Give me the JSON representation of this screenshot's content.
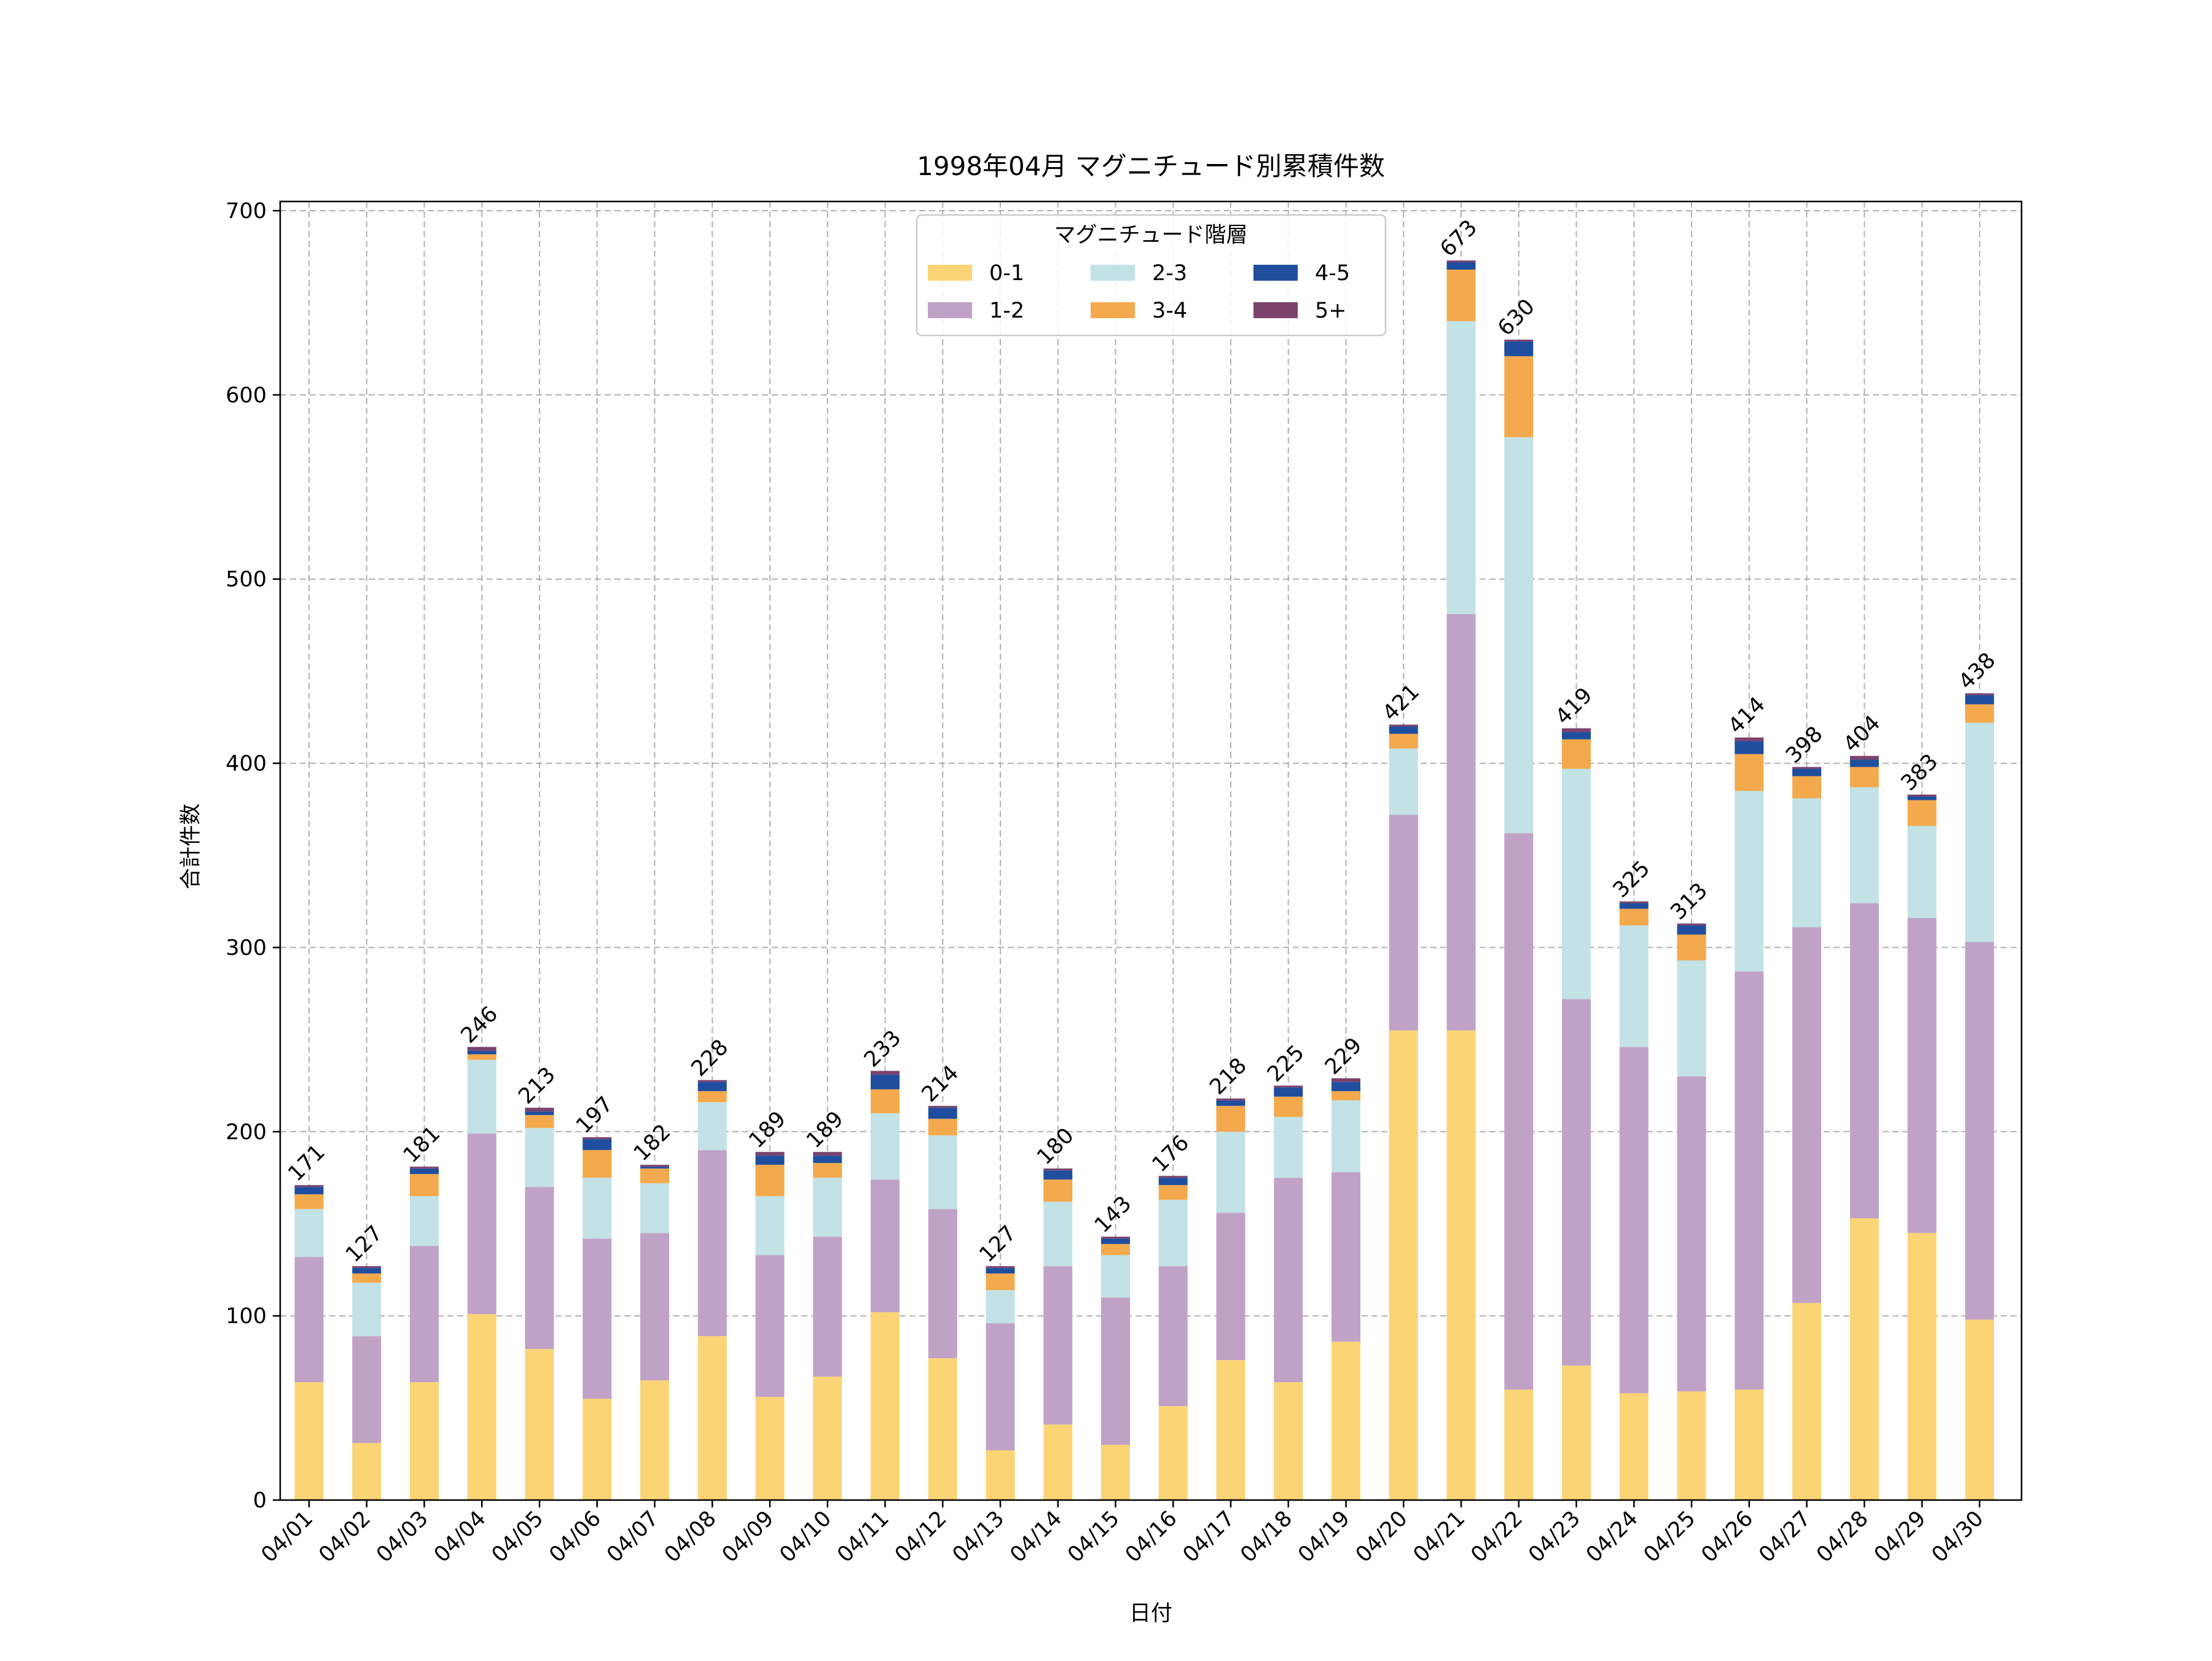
{
  "chart_data": {
    "type": "bar",
    "stacked": true,
    "title": "1998年04月 マグニチュード別累積件数",
    "xlabel": "日付",
    "ylabel": "合計件数",
    "ylim": [
      0,
      705
    ],
    "yticks": [
      0,
      100,
      200,
      300,
      400,
      500,
      600,
      700
    ],
    "grid": true,
    "legend": {
      "title": "マグニチュード階層",
      "placement": "top-center",
      "columns": 3
    },
    "categories": [
      "04/01",
      "04/02",
      "04/03",
      "04/04",
      "04/05",
      "04/06",
      "04/07",
      "04/08",
      "04/09",
      "04/10",
      "04/11",
      "04/12",
      "04/13",
      "04/14",
      "04/15",
      "04/16",
      "04/17",
      "04/18",
      "04/19",
      "04/20",
      "04/21",
      "04/22",
      "04/23",
      "04/24",
      "04/25",
      "04/26",
      "04/27",
      "04/28",
      "04/29",
      "04/30"
    ],
    "series": [
      {
        "name": "0-1",
        "color": "#FBD476",
        "values": [
          64,
          31,
          64,
          101,
          82,
          55,
          65,
          89,
          56,
          67,
          102,
          77,
          27,
          41,
          30,
          51,
          76,
          64,
          86,
          255,
          255,
          60,
          73,
          58,
          59,
          60,
          107,
          153,
          145,
          98
        ]
      },
      {
        "name": "1-2",
        "color": "#C0A2C7",
        "values": [
          68,
          58,
          74,
          98,
          88,
          87,
          80,
          101,
          77,
          76,
          72,
          81,
          69,
          86,
          80,
          76,
          80,
          111,
          92,
          117,
          226,
          302,
          199,
          188,
          171,
          227,
          204,
          171,
          171,
          205
        ]
      },
      {
        "name": "2-3",
        "color": "#C2E2E6",
        "values": [
          26,
          29,
          27,
          40,
          32,
          33,
          27,
          26,
          32,
          32,
          36,
          40,
          18,
          35,
          23,
          36,
          44,
          33,
          39,
          36,
          159,
          215,
          125,
          66,
          63,
          98,
          70,
          63,
          50,
          119
        ]
      },
      {
        "name": "3-4",
        "color": "#F4A94C",
        "values": [
          8,
          5,
          12,
          3,
          7,
          15,
          8,
          6,
          17,
          8,
          13,
          9,
          9,
          12,
          6,
          8,
          14,
          11,
          5,
          8,
          28,
          44,
          16,
          9,
          14,
          20,
          12,
          11,
          14,
          10
        ]
      },
      {
        "name": "4-5",
        "color": "#1F4E9E",
        "values": [
          4,
          3,
          3,
          2,
          2,
          6,
          1,
          5,
          5,
          4,
          8,
          6,
          3,
          5,
          3,
          4,
          3,
          5,
          5,
          4,
          4,
          8,
          4,
          3,
          5,
          7,
          4,
          4,
          2,
          5
        ]
      },
      {
        "name": "5+",
        "color": "#7A426C",
        "values": [
          1,
          1,
          1,
          2,
          2,
          1,
          1,
          1,
          2,
          2,
          2,
          1,
          1,
          1,
          1,
          1,
          1,
          1,
          2,
          1,
          1,
          1,
          2,
          1,
          1,
          2,
          1,
          2,
          1,
          1
        ]
      }
    ],
    "totals": [
      171,
      127,
      181,
      246,
      213,
      197,
      182,
      228,
      189,
      189,
      233,
      214,
      127,
      180,
      143,
      176,
      218,
      225,
      229,
      421,
      673,
      630,
      419,
      325,
      313,
      414,
      398,
      404,
      383,
      438
    ]
  }
}
